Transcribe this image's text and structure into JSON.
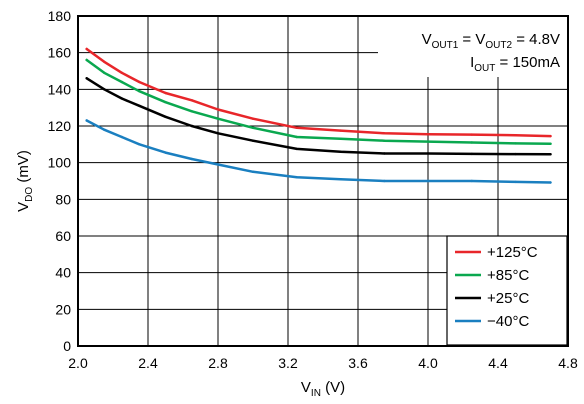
{
  "chart_data": {
    "type": "line",
    "xlim": [
      2.0,
      4.8
    ],
    "ylim": [
      0,
      180
    ],
    "x_ticks": [
      "2.0",
      "2.4",
      "2.8",
      "3.2",
      "3.6",
      "4.0",
      "4.4",
      "4.8"
    ],
    "y_ticks": [
      "0",
      "20",
      "40",
      "60",
      "80",
      "100",
      "120",
      "140",
      "160",
      "180"
    ],
    "xlabel": {
      "main": "V",
      "sub": "IN",
      "suffix": " (V)"
    },
    "ylabel": {
      "main": "V",
      "sub": "DO",
      "suffix": " (mV)"
    },
    "grid": true,
    "legend_position": "bottom-right",
    "annotations": [
      {
        "parts": [
          {
            "t": "V"
          },
          {
            "t": "OUT1",
            "sub": true
          },
          {
            "t": " = V"
          },
          {
            "t": "OUT2",
            "sub": true
          },
          {
            "t": " = 4.8V"
          }
        ]
      },
      {
        "parts": [
          {
            "t": "I"
          },
          {
            "t": "OUT",
            "sub": true
          },
          {
            "t": " = 150mA"
          }
        ]
      }
    ],
    "series": [
      {
        "name": "+125°C",
        "color": "#e8262a",
        "x": [
          2.05,
          2.15,
          2.25,
          2.35,
          2.5,
          2.65,
          2.8,
          3.0,
          3.25,
          3.5,
          3.75,
          4.0,
          4.25,
          4.5,
          4.7
        ],
        "y": [
          162,
          155,
          149,
          144,
          138,
          134,
          129,
          124,
          119,
          117.5,
          116,
          115.5,
          115.3,
          115,
          114.5
        ]
      },
      {
        "name": "+85°C",
        "color": "#0aa84f",
        "x": [
          2.05,
          2.15,
          2.25,
          2.35,
          2.5,
          2.65,
          2.8,
          3.0,
          3.25,
          3.5,
          3.75,
          4.0,
          4.25,
          4.5,
          4.7
        ],
        "y": [
          156,
          149,
          144,
          139,
          133,
          128,
          124,
          119,
          114,
          113,
          112,
          111.5,
          111,
          110.5,
          110.3
        ]
      },
      {
        "name": "+25°C",
        "color": "#000000",
        "x": [
          2.05,
          2.15,
          2.25,
          2.35,
          2.5,
          2.65,
          2.8,
          3.0,
          3.25,
          3.5,
          3.75,
          4.0,
          4.25,
          4.5,
          4.7
        ],
        "y": [
          146,
          140,
          135,
          131,
          125,
          120,
          116,
          112,
          107.5,
          106,
          105,
          105,
          104.8,
          104.7,
          104.6
        ]
      },
      {
        "name": "−40°C",
        "color": "#1a7fc0",
        "x": [
          2.05,
          2.15,
          2.25,
          2.35,
          2.5,
          2.65,
          2.8,
          3.0,
          3.25,
          3.5,
          3.75,
          4.0,
          4.25,
          4.5,
          4.7
        ],
        "y": [
          123,
          118,
          114,
          110,
          105.5,
          102,
          99,
          95,
          92,
          91,
          90,
          90,
          90,
          89.5,
          89.2
        ]
      }
    ]
  }
}
